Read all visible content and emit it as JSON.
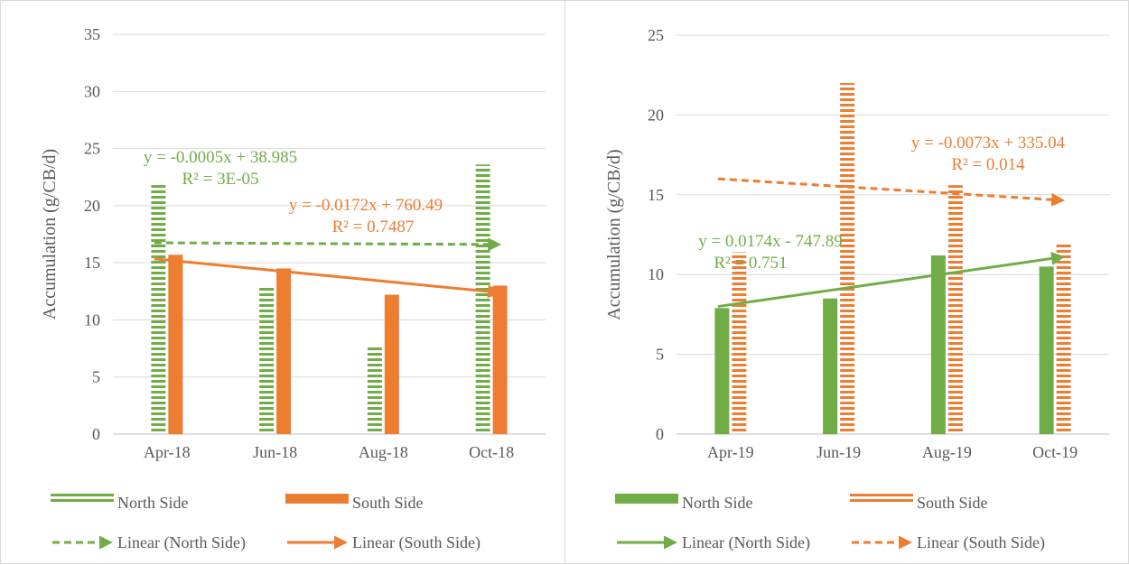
{
  "colors": {
    "north": "#70ad47",
    "south": "#ed7d31",
    "grid": "#d9d9d9",
    "axis": "#bfbfbf",
    "text": "#595959"
  },
  "chart_data": [
    {
      "type": "bar",
      "ylabel": "Accumulation (g/CB/d)",
      "ylim": [
        0,
        35
      ],
      "yticks": [
        "0",
        "5",
        "10",
        "15",
        "20",
        "25",
        "30",
        "35"
      ],
      "categories": [
        "Apr-18",
        "Jun-18",
        "Aug-18",
        "Oct-18"
      ],
      "grid": true,
      "legend_position": "bottom",
      "series": [
        {
          "name": "North Side",
          "values": [
            21.8,
            12.9,
            7.8,
            23.6
          ],
          "pattern": "striped"
        },
        {
          "name": "South Side",
          "values": [
            15.7,
            14.5,
            12.2,
            13.0
          ],
          "pattern": "solid"
        }
      ],
      "trendlines": [
        {
          "name": "Linear (North Side)",
          "series": "North Side",
          "style": "dashed",
          "y_start": 16.75,
          "y_end": 16.6,
          "equation": "y = -0.0005x + 38.985",
          "r2": "R² = 3E-05"
        },
        {
          "name": "Linear (South Side)",
          "series": "South Side",
          "style": "solid",
          "y_start": 15.35,
          "y_end": 12.4,
          "equation": "y = -0.0172x + 760.49",
          "r2": "R² = 0.7487"
        }
      ]
    },
    {
      "type": "bar",
      "ylabel": "Accumulation (g/CB/d)",
      "ylim": [
        0,
        25
      ],
      "yticks": [
        "0",
        "5",
        "10",
        "15",
        "20",
        "25"
      ],
      "categories": [
        "Apr-19",
        "Jun-19",
        "Aug-19",
        "Oct-19"
      ],
      "grid": true,
      "legend_position": "bottom",
      "series": [
        {
          "name": "North Side",
          "values": [
            7.9,
            8.5,
            11.2,
            10.5
          ],
          "pattern": "solid"
        },
        {
          "name": "South Side",
          "values": [
            11.4,
            22.0,
            15.6,
            12.0
          ],
          "pattern": "striped"
        }
      ],
      "trendlines": [
        {
          "name": "Linear (North Side)",
          "series": "North Side",
          "style": "solid",
          "y_start": 8.0,
          "y_end": 11.1,
          "equation": "y = 0.0174x - 747.89",
          "r2": "R² = 0.751"
        },
        {
          "name": "Linear (South Side)",
          "series": "South Side",
          "style": "dashed",
          "y_start": 16.0,
          "y_end": 14.65,
          "equation": "y = -0.0073x + 335.04",
          "r2": "R² = 0.014"
        }
      ]
    }
  ]
}
